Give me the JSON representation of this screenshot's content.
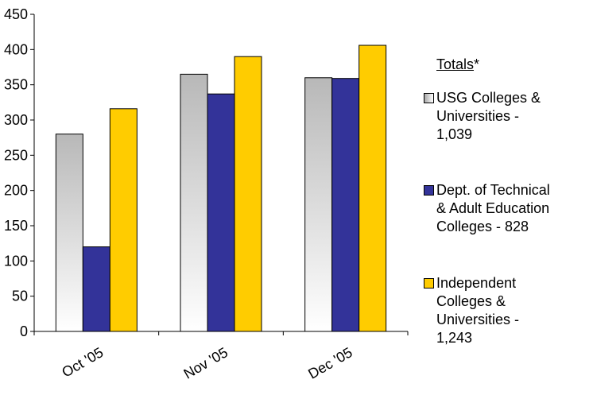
{
  "chart_data": {
    "type": "bar",
    "categories": [
      "Oct '05",
      "Nov '05",
      "Dec '05"
    ],
    "series": [
      {
        "name": "USG Colleges & Universities - 1,039",
        "values": [
          280,
          365,
          360
        ],
        "color": "#c0c0c0",
        "fill": "gradient-gray"
      },
      {
        "name": "Dept. of Technical & Adult Education Colleges - 828",
        "values": [
          120,
          337,
          359
        ],
        "color": "#333399"
      },
      {
        "name": "Independent Colleges & Universities - 1,243",
        "values": [
          316,
          390,
          406
        ],
        "color": "#ffcc00"
      }
    ],
    "ylim": [
      0,
      450
    ],
    "yticks": [
      "0",
      "50",
      "100",
      "150",
      "200",
      "250",
      "300",
      "350",
      "400",
      "450"
    ],
    "grid": false,
    "legend_position": "right"
  },
  "legend": {
    "title": "Totals",
    "title_suffix": "*",
    "items": [
      {
        "lines": [
          "USG Colleges &",
          "Universities -",
          "1,039"
        ]
      },
      {
        "lines": [
          "Dept. of Technical",
          "& Adult Education",
          "Colleges - 828"
        ]
      },
      {
        "lines": [
          "Independent",
          "Colleges &",
          "Universities -",
          "1,243"
        ]
      }
    ]
  }
}
